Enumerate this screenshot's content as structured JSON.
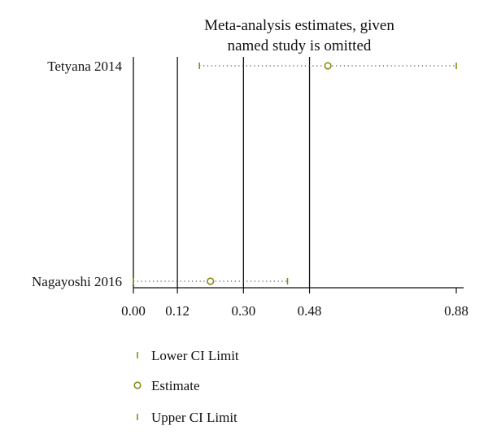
{
  "chart_data": {
    "type": "scatter",
    "title_lines": [
      "Meta-analysis estimates, given",
      "named study is omitted"
    ],
    "studies": [
      {
        "name": "Tetyana 2014",
        "lower": 0.18,
        "estimate": 0.53,
        "upper": 0.88
      },
      {
        "name": "Nagayoshi 2016",
        "lower": 0.0,
        "estimate": 0.21,
        "upper": 0.42
      }
    ],
    "x_ticks": [
      {
        "value": 0.0,
        "label": "0.00"
      },
      {
        "value": 0.12,
        "label": "0.12"
      },
      {
        "value": 0.3,
        "label": "0.30"
      },
      {
        "value": 0.48,
        "label": "0.48"
      },
      {
        "value": 0.88,
        "label": "0.88"
      }
    ],
    "reference_lines": [
      0.0,
      0.12,
      0.3,
      0.48
    ],
    "xlim": [
      0.0,
      0.88
    ],
    "grid": false,
    "legend_position": "bottom-left",
    "legend": [
      {
        "marker": "tick",
        "label": "Lower CI Limit"
      },
      {
        "marker": "circle",
        "label": "Estimate"
      },
      {
        "marker": "tick",
        "label": "Upper CI Limit"
      }
    ],
    "colors": {
      "marker": "#8a8a14",
      "line": "#111111",
      "dotted": "#555555"
    }
  }
}
